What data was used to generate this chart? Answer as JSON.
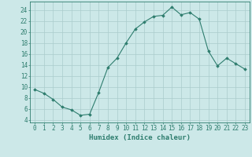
{
  "x": [
    0,
    1,
    2,
    3,
    4,
    5,
    6,
    7,
    8,
    9,
    10,
    11,
    12,
    13,
    14,
    15,
    16,
    17,
    18,
    19,
    20,
    21,
    22,
    23
  ],
  "y": [
    9.5,
    8.8,
    7.7,
    6.3,
    5.8,
    4.8,
    5.0,
    9.0,
    13.5,
    15.2,
    18.0,
    20.5,
    21.8,
    22.8,
    23.0,
    24.5,
    23.1,
    23.5,
    22.3,
    16.5,
    13.8,
    15.2,
    14.2,
    13.2
  ],
  "line_color": "#2e7d6e",
  "marker": "D",
  "marker_size": 1.8,
  "bg_color": "#cce8e8",
  "grid_color": "#aacccc",
  "xlabel": "Humidex (Indice chaleur)",
  "xlim": [
    -0.5,
    23.5
  ],
  "ylim": [
    3.5,
    25.5
  ],
  "yticks": [
    4,
    6,
    8,
    10,
    12,
    14,
    16,
    18,
    20,
    22,
    24
  ],
  "xticks": [
    0,
    1,
    2,
    3,
    4,
    5,
    6,
    7,
    8,
    9,
    10,
    11,
    12,
    13,
    14,
    15,
    16,
    17,
    18,
    19,
    20,
    21,
    22,
    23
  ],
  "tick_color": "#2e7d6e",
  "label_color": "#2e7d6e",
  "tick_font_size": 5.5,
  "xlabel_font_size": 6.5
}
